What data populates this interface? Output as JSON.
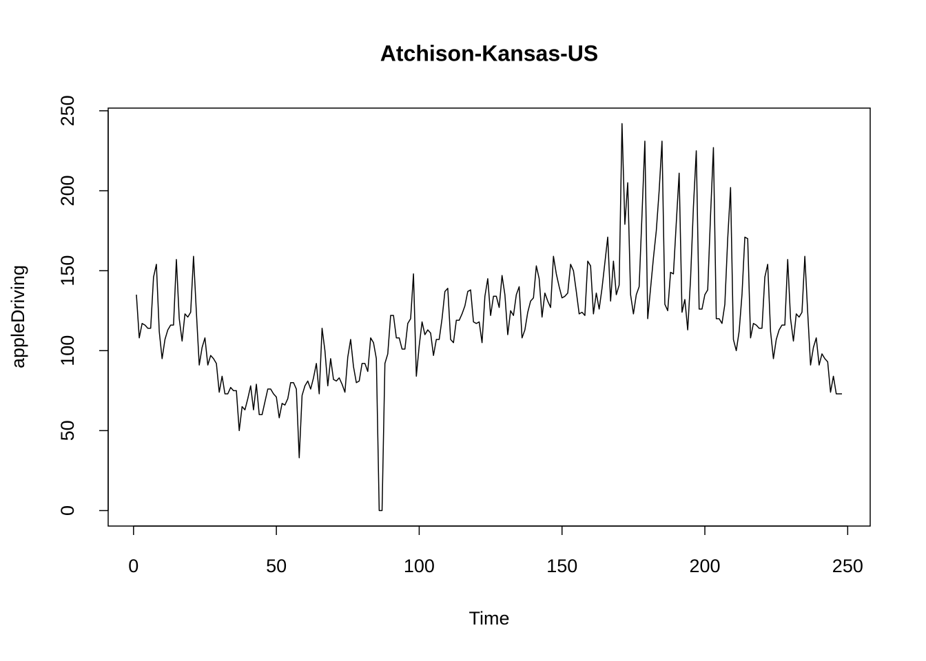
{
  "chart_data": {
    "type": "line",
    "title": "Atchison-Kansas-US",
    "x_label": "Time",
    "y_label": "appleDriving",
    "x": [
      1,
      2,
      3,
      4,
      5,
      6,
      7,
      8,
      9,
      10,
      11,
      12,
      13,
      14,
      15,
      16,
      17,
      18,
      19,
      20,
      21,
      22,
      23,
      24,
      25,
      26,
      27,
      28,
      29,
      30,
      31,
      32,
      33,
      34,
      35,
      36,
      37,
      38,
      39,
      40,
      41,
      42,
      43,
      44,
      45,
      46,
      47,
      48,
      49,
      50,
      51,
      52,
      53,
      54,
      55,
      56,
      57,
      58,
      59,
      60,
      61,
      62,
      63,
      64,
      65,
      66,
      67,
      68,
      69,
      70,
      71,
      72,
      73,
      74,
      75,
      76,
      77,
      78,
      79,
      80,
      81,
      82,
      83,
      84,
      85,
      86,
      87,
      88,
      89,
      90,
      91,
      92,
      93,
      94,
      95,
      96,
      97,
      98,
      99,
      100,
      101,
      102,
      103,
      104,
      105,
      106,
      107,
      108,
      109,
      110,
      111,
      112,
      113,
      114,
      115,
      116,
      117,
      118,
      119,
      120,
      121,
      122,
      123,
      124,
      125,
      126,
      127,
      128,
      129,
      130,
      131,
      132,
      133,
      134,
      135,
      136,
      137,
      138,
      139,
      140,
      141,
      142,
      143,
      144,
      145,
      146,
      147,
      148,
      149,
      150,
      151,
      152,
      153,
      154,
      155,
      156,
      157,
      158,
      159,
      160,
      161,
      162,
      163,
      164,
      165,
      166,
      167,
      168,
      169,
      170,
      171,
      172,
      173,
      174,
      175,
      176,
      177,
      178,
      179,
      180,
      181,
      182,
      183,
      184,
      185,
      186,
      187,
      188,
      189,
      190,
      191,
      192,
      193,
      194,
      195,
      196,
      197,
      198,
      199,
      200,
      201,
      202,
      203,
      204,
      205,
      206,
      207,
      208,
      209,
      210,
      211,
      212,
      213,
      214,
      215,
      216,
      217,
      218,
      219,
      220,
      221,
      222,
      223,
      224,
      225,
      226,
      227,
      228,
      229,
      230,
      231,
      232,
      233,
      234,
      235,
      236,
      237,
      238,
      239,
      240,
      241,
      242,
      243,
      244,
      245,
      246,
      247,
      248
    ],
    "series": [
      {
        "name": "appleDriving",
        "color": "#000000",
        "values": [
          135,
          108,
          117,
          116,
          114,
          114,
          146,
          154,
          112,
          95,
          107,
          113,
          116,
          116,
          157,
          120,
          106,
          123,
          121,
          124,
          159,
          124,
          91,
          102,
          108,
          91,
          97,
          95,
          92,
          74,
          84,
          73,
          73,
          77,
          75,
          75,
          50,
          65,
          63,
          70,
          78,
          63,
          79,
          60,
          60,
          68,
          76,
          76,
          73,
          71,
          58,
          67,
          66,
          70,
          80,
          80,
          76,
          33,
          72,
          78,
          81,
          76,
          83,
          92,
          73,
          114,
          100,
          78,
          95,
          82,
          81,
          83,
          79,
          74,
          96,
          107,
          90,
          80,
          81,
          92,
          92,
          87,
          108,
          105,
          95,
          0,
          0,
          92,
          98,
          122,
          122,
          108,
          108,
          101,
          101,
          117,
          120,
          148,
          84,
          103,
          118,
          110,
          113,
          111,
          97,
          107,
          107,
          120,
          137,
          139,
          107,
          105,
          119,
          119,
          123,
          128,
          137,
          138,
          118,
          117,
          118,
          105,
          134,
          145,
          122,
          134,
          134,
          127,
          147,
          135,
          110,
          125,
          122,
          135,
          140,
          108,
          113,
          124,
          131,
          133,
          153,
          145,
          121,
          136,
          131,
          127,
          159,
          148,
          140,
          133,
          134,
          136,
          154,
          150,
          137,
          123,
          124,
          122,
          156,
          153,
          123,
          136,
          126,
          139,
          155,
          171,
          131,
          156,
          135,
          141,
          242,
          179,
          205,
          135,
          123,
          135,
          140,
          185,
          231,
          120,
          139,
          158,
          175,
          200,
          231,
          129,
          125,
          149,
          148,
          180,
          211,
          124,
          132,
          113,
          145,
          190,
          225,
          126,
          126,
          135,
          138,
          185,
          227,
          120,
          120,
          117,
          129,
          170,
          202,
          107,
          100,
          112,
          135,
          171,
          170,
          108,
          117,
          116,
          114,
          114,
          146,
          154,
          112,
          95,
          107,
          113,
          116,
          116,
          157,
          120,
          106,
          123,
          121,
          124,
          159,
          124,
          91,
          102,
          108,
          91,
          98,
          95,
          93,
          74,
          84,
          73,
          73,
          73
        ]
      }
    ],
    "xlim": [
      -8.88,
      257.88
    ],
    "ylim": [
      -9.68,
      251.68
    ],
    "xticks": [
      0,
      50,
      100,
      150,
      200,
      250
    ],
    "yticks": [
      0,
      50,
      100,
      150,
      200,
      250
    ],
    "grid": false
  }
}
